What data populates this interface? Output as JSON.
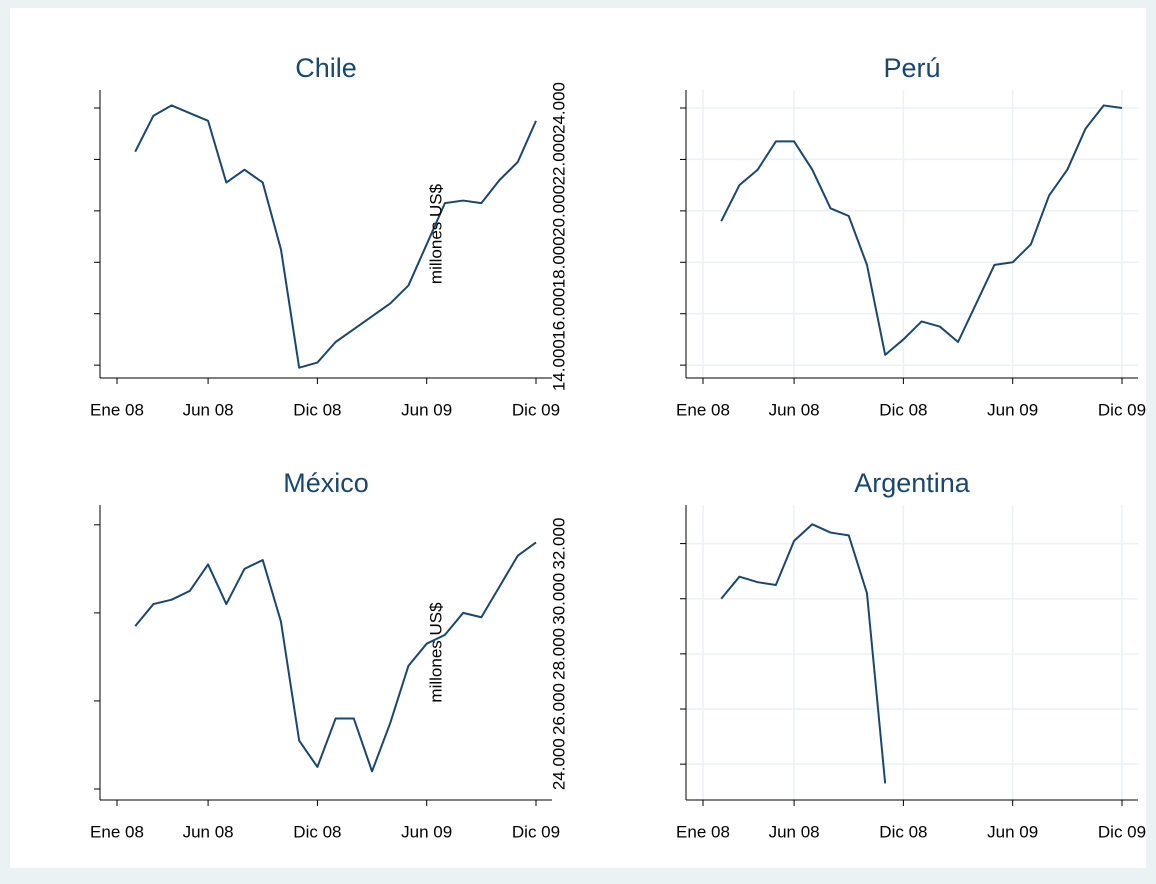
{
  "chart_data": [
    {
      "type": "line",
      "title": "Chile",
      "color": "#1a476f",
      "grid": false,
      "ytick_labels": false,
      "x": [
        "2008-02",
        "2008-03",
        "2008-04",
        "2008-05",
        "2008-06",
        "2008-07",
        "2008-08",
        "2008-09",
        "2008-10",
        "2008-11",
        "2008-12",
        "2009-01",
        "2009-02",
        "2009-03",
        "2009-04",
        "2009-05",
        "2009-06",
        "2009-07",
        "2009-08",
        "2009-09",
        "2009-10",
        "2009-11",
        "2009-12"
      ],
      "values": [
        22300,
        23700,
        24100,
        23800,
        23500,
        21100,
        21600,
        21100,
        18500,
        13900,
        14100,
        14900,
        15400,
        15900,
        16400,
        17100,
        18700,
        20300,
        20400,
        20300,
        21200,
        21900,
        23500
      ],
      "xlim": [
        "2008-01",
        "2009-12"
      ],
      "xticks": [
        {
          "value": "2008-01",
          "label": "Ene 08"
        },
        {
          "value": "2008-06",
          "label": "Jun 08"
        },
        {
          "value": "2008-12",
          "label": "Dic 08"
        },
        {
          "value": "2009-06",
          "label": "Jun 09"
        },
        {
          "value": "2009-12",
          "label": "Dic 09"
        }
      ],
      "ylim": [
        13500,
        24700
      ],
      "yticks": [
        14000,
        16000,
        18000,
        20000,
        22000,
        24000
      ]
    },
    {
      "type": "line",
      "title": "Perú",
      "color": "#1a476f",
      "grid": true,
      "ytick_labels": true,
      "ylabel": "millones US$",
      "x": [
        "2008-02",
        "2008-03",
        "2008-04",
        "2008-05",
        "2008-06",
        "2008-07",
        "2008-08",
        "2008-09",
        "2008-10",
        "2008-11",
        "2008-12",
        "2009-01",
        "2009-02",
        "2009-03",
        "2009-04",
        "2009-05",
        "2009-06",
        "2009-07",
        "2009-08",
        "2009-09",
        "2009-10",
        "2009-11",
        "2009-12"
      ],
      "values": [
        19600,
        21000,
        21600,
        22700,
        22700,
        21600,
        20100,
        19800,
        17900,
        14400,
        15000,
        15700,
        15500,
        14900,
        16400,
        17900,
        18000,
        18700,
        20600,
        21600,
        23200,
        24100,
        24000
      ],
      "xlim": [
        "2008-01",
        "2009-12"
      ],
      "xticks": [
        {
          "value": "2008-01",
          "label": "Ene 08"
        },
        {
          "value": "2008-06",
          "label": "Jun 08"
        },
        {
          "value": "2008-12",
          "label": "Dic 08"
        },
        {
          "value": "2009-06",
          "label": "Jun 09"
        },
        {
          "value": "2009-12",
          "label": "Dic 09"
        }
      ],
      "ylim": [
        13500,
        24700
      ],
      "yticks": [
        {
          "value": 14000,
          "label": "14.000"
        },
        {
          "value": 16000,
          "label": "16.000"
        },
        {
          "value": 18000,
          "label": "18.000"
        },
        {
          "value": 20000,
          "label": "20.000"
        },
        {
          "value": 22000,
          "label": "22.000"
        },
        {
          "value": 24000,
          "label": "24.000"
        }
      ]
    },
    {
      "type": "line",
      "title": "México",
      "color": "#1a476f",
      "grid": false,
      "ytick_labels": false,
      "x": [
        "2008-02",
        "2008-03",
        "2008-04",
        "2008-05",
        "2008-06",
        "2008-07",
        "2008-08",
        "2008-09",
        "2008-10",
        "2008-11",
        "2008-12",
        "2009-01",
        "2009-02",
        "2009-03",
        "2009-04",
        "2009-05",
        "2009-06",
        "2009-07",
        "2009-08",
        "2009-09",
        "2009-10",
        "2009-11",
        "2009-12"
      ],
      "values": [
        21700,
        22200,
        22300,
        22500,
        23100,
        22200,
        23000,
        23200,
        21800,
        19100,
        18500,
        19600,
        19600,
        18400,
        19500,
        20800,
        21300,
        21500,
        22000,
        21900,
        22600,
        23300,
        23600
      ],
      "xlim": [
        "2008-01",
        "2009-12"
      ],
      "xticks": [
        {
          "value": "2008-01",
          "label": "Ene 08"
        },
        {
          "value": "2008-06",
          "label": "Jun 08"
        },
        {
          "value": "2008-12",
          "label": "Dic 08"
        },
        {
          "value": "2009-06",
          "label": "Jun 09"
        },
        {
          "value": "2009-12",
          "label": "Dic 09"
        }
      ],
      "ylim": [
        17750,
        24450
      ],
      "yticks": [
        18000,
        20000,
        22000,
        24000
      ]
    },
    {
      "type": "line",
      "title": "Argentina",
      "color": "#1a476f",
      "grid": true,
      "ytick_labels": true,
      "ylabel": "millones US$",
      "x": [
        "2008-02",
        "2008-03",
        "2008-04",
        "2008-05",
        "2008-06",
        "2008-07",
        "2008-08",
        "2008-09",
        "2008-10",
        "2008-11"
      ],
      "values": [
        30000,
        30800,
        30600,
        30500,
        32100,
        32700,
        32400,
        32300,
        30200,
        23300
      ],
      "xlim": [
        "2008-01",
        "2009-12"
      ],
      "xticks": [
        {
          "value": "2008-01",
          "label": "Ene 08"
        },
        {
          "value": "2008-06",
          "label": "Jun 08"
        },
        {
          "value": "2008-12",
          "label": "Dic 08"
        },
        {
          "value": "2009-06",
          "label": "Jun 09"
        },
        {
          "value": "2009-12",
          "label": "Dic 09"
        }
      ],
      "ylim": [
        22700,
        33400
      ],
      "yticks": [
        {
          "value": 24000,
          "label": "24.000"
        },
        {
          "value": 26000,
          "label": "26.000"
        },
        {
          "value": 28000,
          "label": "28.000"
        },
        {
          "value": 30000,
          "label": "30.000"
        },
        {
          "value": 32000,
          "label": "32.000"
        }
      ]
    }
  ]
}
